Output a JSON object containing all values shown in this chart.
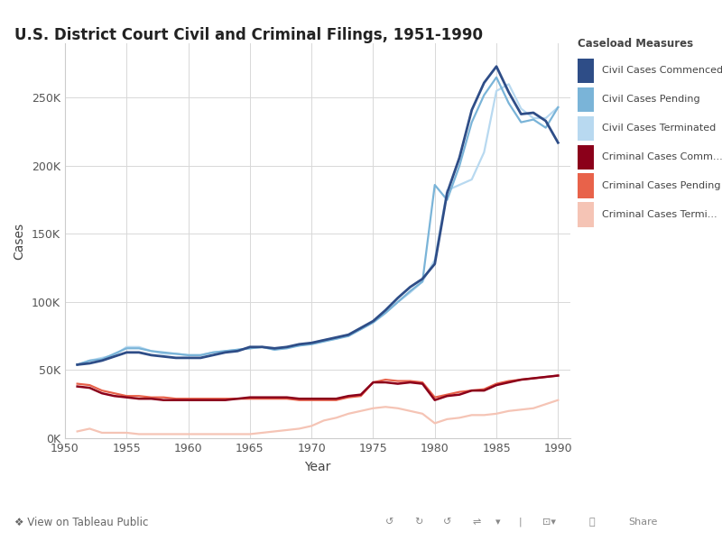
{
  "title": "U.S. District Court Civil and Criminal Filings, 1951-1990",
  "xlabel": "Year",
  "ylabel": "Cases",
  "years": [
    1951,
    1952,
    1953,
    1954,
    1955,
    1956,
    1957,
    1958,
    1959,
    1960,
    1961,
    1962,
    1963,
    1964,
    1965,
    1966,
    1967,
    1968,
    1969,
    1970,
    1971,
    1972,
    1973,
    1974,
    1975,
    1976,
    1977,
    1978,
    1979,
    1980,
    1981,
    1982,
    1983,
    1984,
    1985,
    1986,
    1987,
    1988,
    1989,
    1990
  ],
  "civil_commenced": [
    54000,
    55000,
    57000,
    60000,
    63000,
    63000,
    61000,
    60000,
    59000,
    59000,
    59000,
    61000,
    63000,
    64000,
    67000,
    67000,
    66000,
    67000,
    69000,
    70000,
    72000,
    74000,
    76000,
    81000,
    86000,
    94000,
    103000,
    111000,
    117000,
    128000,
    180000,
    206000,
    241000,
    261000,
    273000,
    254000,
    238000,
    239000,
    233000,
    217000
  ],
  "civil_pending": [
    54000,
    57000,
    58000,
    62000,
    66000,
    66000,
    64000,
    63000,
    62000,
    61000,
    61000,
    63000,
    64000,
    65000,
    66000,
    67000,
    65000,
    66000,
    68000,
    69000,
    71000,
    73000,
    75000,
    80000,
    85000,
    92000,
    100000,
    108000,
    115000,
    186000,
    175000,
    200000,
    232000,
    252000,
    265000,
    246000,
    232000,
    234000,
    228000,
    243000
  ],
  "civil_terminated": [
    54000,
    57000,
    59000,
    61000,
    67000,
    67000,
    64000,
    62000,
    62000,
    61000,
    61000,
    63000,
    64000,
    65000,
    66000,
    67000,
    65000,
    67000,
    68000,
    70000,
    72000,
    73000,
    76000,
    80000,
    85000,
    92000,
    100000,
    107000,
    115000,
    131000,
    182000,
    186000,
    190000,
    210000,
    255000,
    260000,
    242000,
    235000,
    235000,
    243000
  ],
  "criminal_commenced": [
    38000,
    37000,
    33000,
    31000,
    30000,
    29000,
    29000,
    28000,
    28000,
    28000,
    28000,
    28000,
    28000,
    29000,
    30000,
    30000,
    30000,
    30000,
    29000,
    29000,
    29000,
    29000,
    31000,
    32000,
    41000,
    41000,
    40000,
    41000,
    40000,
    28000,
    31000,
    32000,
    35000,
    35000,
    39000,
    41000,
    43000,
    44000,
    45000,
    46000
  ],
  "criminal_pending": [
    40000,
    39000,
    35000,
    33000,
    31000,
    31000,
    30000,
    30000,
    29000,
    29000,
    29000,
    29000,
    29000,
    29000,
    29000,
    29000,
    29000,
    29000,
    28000,
    28000,
    28000,
    28000,
    30000,
    31000,
    41000,
    43000,
    42000,
    42000,
    41000,
    30000,
    32000,
    34000,
    35000,
    36000,
    40000,
    42000,
    43000,
    44000,
    45000,
    46000
  ],
  "criminal_terminated": [
    5000,
    7000,
    4000,
    4000,
    4000,
    3000,
    3000,
    3000,
    3000,
    3000,
    3000,
    3000,
    3000,
    3000,
    3000,
    4000,
    5000,
    6000,
    7000,
    9000,
    13000,
    15000,
    18000,
    20000,
    22000,
    23000,
    22000,
    20000,
    18000,
    11000,
    14000,
    15000,
    17000,
    17000,
    18000,
    20000,
    21000,
    22000,
    25000,
    28000
  ],
  "colors": {
    "civil_commenced": "#2e4d87",
    "civil_pending": "#7ab4d8",
    "civil_terminated": "#b8d9f0",
    "criminal_commenced": "#8b001a",
    "criminal_pending": "#e8624a",
    "criminal_terminated": "#f5c4b5"
  },
  "legend_title": "Caseload Measures",
  "legend_labels": [
    "Civil Cases Commenced",
    "Civil Cases Pending",
    "Civil Cases Terminated",
    "Criminal Cases Comm...",
    "Criminal Cases Pending",
    "Criminal Cases Termi..."
  ],
  "ylim": [
    0,
    290000
  ],
  "yticks": [
    0,
    50000,
    100000,
    150000,
    200000,
    250000
  ],
  "ytick_labels": [
    "0K",
    "50K",
    "100K",
    "150K",
    "200K",
    "250K"
  ],
  "xticks": [
    1950,
    1955,
    1960,
    1965,
    1970,
    1975,
    1980,
    1985,
    1990
  ],
  "bg_color": "#ffffff",
  "plot_bg_color": "#ffffff",
  "grid_color": "#d8d8d8",
  "bottom_bar_color": "#f0f0f0",
  "tableau_text": "❖ View on Tableau Public"
}
